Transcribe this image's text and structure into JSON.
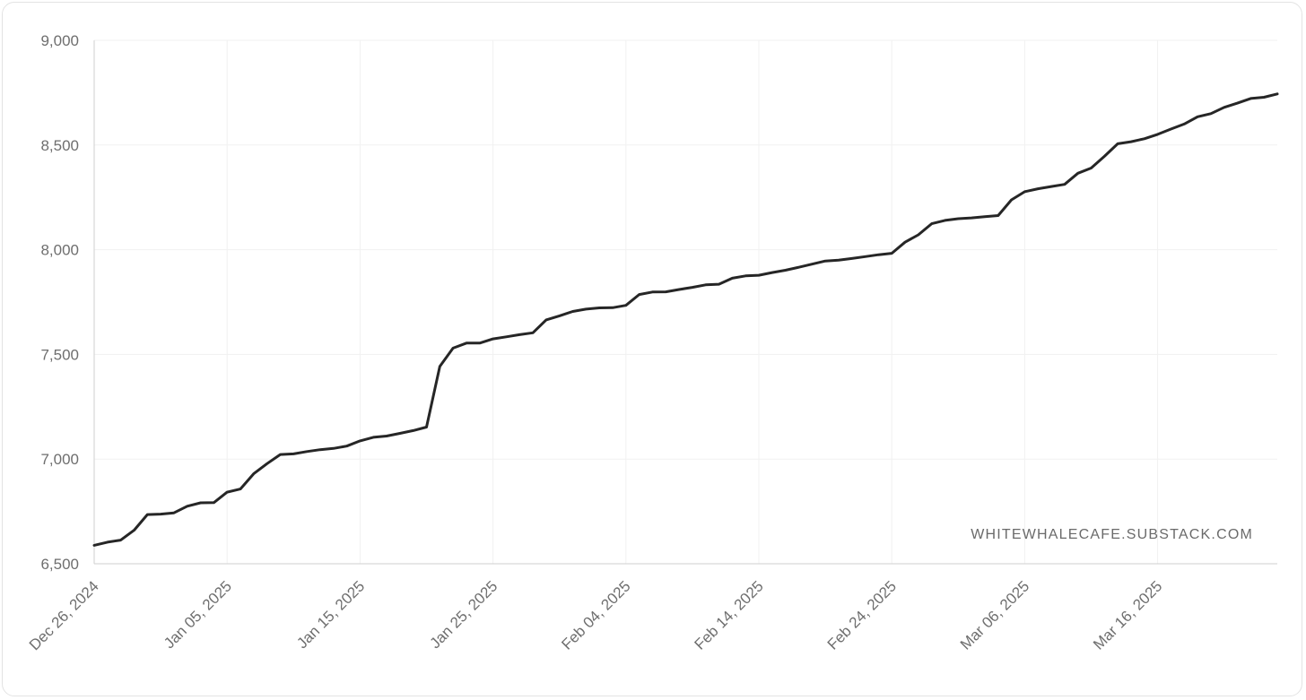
{
  "chart_data": {
    "type": "line",
    "title": "",
    "xlabel": "",
    "ylabel": "",
    "watermark": "WHITEWHALECAFE.SUBSTACK.COM",
    "colors": {
      "line": "#262626",
      "grid": "#f1f1f1",
      "axis": "#cfcfcf",
      "text": "#6e6e6e"
    },
    "grid": true,
    "ylim": [
      6500,
      9000
    ],
    "y_ticks": [
      {
        "value": 9000,
        "label": "9,000"
      },
      {
        "value": 8500,
        "label": "8,500"
      },
      {
        "value": 8000,
        "label": "8,000"
      },
      {
        "value": 7500,
        "label": "7,500"
      },
      {
        "value": 7000,
        "label": "7,000"
      },
      {
        "value": 6500,
        "label": "6,500"
      }
    ],
    "xlim": [
      "2024-12-26",
      "2025-03-25"
    ],
    "x_ticks": [
      {
        "date": "2024-12-26",
        "label": "Dec 26, 2024"
      },
      {
        "date": "2025-01-05",
        "label": "Jan 05, 2025"
      },
      {
        "date": "2025-01-15",
        "label": "Jan 15, 2025"
      },
      {
        "date": "2025-01-25",
        "label": "Jan 25, 2025"
      },
      {
        "date": "2025-02-04",
        "label": "Feb 04, 2025"
      },
      {
        "date": "2025-02-14",
        "label": "Feb 14, 2025"
      },
      {
        "date": "2025-02-24",
        "label": "Feb 24, 2025"
      },
      {
        "date": "2025-03-06",
        "label": "Mar 06, 2025"
      },
      {
        "date": "2025-03-16",
        "label": "Mar 16, 2025"
      }
    ],
    "series": [
      {
        "x": [
          "2024-12-26",
          "2024-12-27",
          "2024-12-28",
          "2024-12-29",
          "2024-12-30",
          "2024-12-31",
          "2025-01-01",
          "2025-01-02",
          "2025-01-03",
          "2025-01-04",
          "2025-01-05",
          "2025-01-06",
          "2025-01-07",
          "2025-01-08",
          "2025-01-09",
          "2025-01-10",
          "2025-01-11",
          "2025-01-12",
          "2025-01-13",
          "2025-01-14",
          "2025-01-15",
          "2025-01-16",
          "2025-01-17",
          "2025-01-18",
          "2025-01-19",
          "2025-01-20",
          "2025-01-21",
          "2025-01-22",
          "2025-01-23",
          "2025-01-24",
          "2025-01-25",
          "2025-01-26",
          "2025-01-27",
          "2025-01-28",
          "2025-01-29",
          "2025-01-30",
          "2025-01-31",
          "2025-02-01",
          "2025-02-02",
          "2025-02-03",
          "2025-02-04",
          "2025-02-05",
          "2025-02-06",
          "2025-02-07",
          "2025-02-08",
          "2025-02-09",
          "2025-02-10",
          "2025-02-11",
          "2025-02-12",
          "2025-02-13",
          "2025-02-14",
          "2025-02-15",
          "2025-02-16",
          "2025-02-17",
          "2025-02-18",
          "2025-02-19",
          "2025-02-20",
          "2025-02-21",
          "2025-02-22",
          "2025-02-23",
          "2025-02-24",
          "2025-02-25",
          "2025-02-26",
          "2025-02-27",
          "2025-02-28",
          "2025-03-01",
          "2025-03-02",
          "2025-03-03",
          "2025-03-04",
          "2025-03-05",
          "2025-03-06",
          "2025-03-07",
          "2025-03-08",
          "2025-03-09",
          "2025-03-10",
          "2025-03-11",
          "2025-03-12",
          "2025-03-13",
          "2025-03-14",
          "2025-03-15",
          "2025-03-16",
          "2025-03-17",
          "2025-03-18",
          "2025-03-19",
          "2025-03-20",
          "2025-03-21",
          "2025-03-22",
          "2025-03-23",
          "2025-03-24",
          "2025-03-25"
        ],
        "values": [
          6588,
          6603,
          6613,
          6660,
          6735,
          6737,
          6743,
          6775,
          6791,
          6792,
          6842,
          6857,
          6930,
          6978,
          7022,
          7025,
          7036,
          7045,
          7051,
          7062,
          7087,
          7104,
          7110,
          7123,
          7136,
          7153,
          7442,
          7530,
          7554,
          7554,
          7574,
          7584,
          7594,
          7603,
          7665,
          7684,
          7705,
          7716,
          7722,
          7723,
          7734,
          7786,
          7798,
          7799,
          7810,
          7820,
          7832,
          7835,
          7864,
          7875,
          7878,
          7891,
          7902,
          7916,
          7931,
          7946,
          7950,
          7958,
          7967,
          7976,
          7983,
          8036,
          8071,
          8124,
          8140,
          8148,
          8152,
          8158,
          8163,
          8238,
          8277,
          8291,
          8302,
          8312,
          8365,
          8390,
          8446,
          8506,
          8516,
          8530,
          8551,
          8576,
          8600,
          8635,
          8650,
          8680,
          8700,
          8722,
          8728,
          8744
        ]
      }
    ]
  }
}
